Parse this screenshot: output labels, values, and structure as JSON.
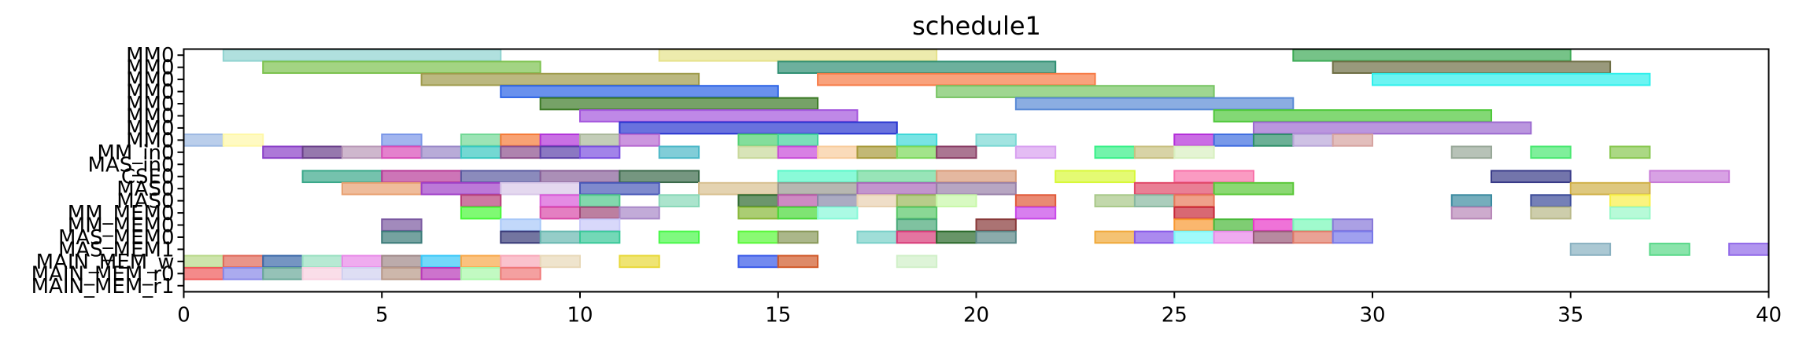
{
  "chart_data": {
    "type": "gantt",
    "title": "schedule1",
    "xlabel": "",
    "ylabel": "",
    "xlim": [
      0,
      40
    ],
    "x_ticks": [
      0,
      5,
      10,
      15,
      20,
      25,
      30,
      35,
      40
    ],
    "grid": false,
    "rows": [
      "MM0",
      "MM0",
      "MM0",
      "MM0",
      "MM0",
      "MM0",
      "MM0",
      "MM0",
      "MM_in0",
      "MAS_in0",
      "CSE0",
      "MAS0",
      "MAS0",
      "MM_MEM0",
      "MM_MEM0",
      "MAS_MEM0",
      "MAS_MEM1",
      "MAIN_MEM_w",
      "MAIN_MEM_r0",
      "MAIN_MEM_r1"
    ],
    "tasks": [
      {
        "row": 0,
        "start": 1,
        "end": 8,
        "color": "#8fd3d0"
      },
      {
        "row": 0,
        "start": 12,
        "end": 19,
        "color": "#e6e28a"
      },
      {
        "row": 0,
        "start": 28,
        "end": 35,
        "color": "#3caa55"
      },
      {
        "row": 1,
        "start": 2,
        "end": 9,
        "color": "#7cc24e"
      },
      {
        "row": 1,
        "start": 15,
        "end": 22,
        "color": "#2f8f73"
      },
      {
        "row": 1,
        "start": 29,
        "end": 36,
        "color": "#6e6e44"
      },
      {
        "row": 2,
        "start": 6,
        "end": 13,
        "color": "#9e9a4a"
      },
      {
        "row": 2,
        "start": 16,
        "end": 23,
        "color": "#f77a45"
      },
      {
        "row": 2,
        "start": 30,
        "end": 37,
        "color": "#2ef0ec"
      },
      {
        "row": 3,
        "start": 8,
        "end": 15,
        "color": "#2a62e6"
      },
      {
        "row": 3,
        "start": 19,
        "end": 26,
        "color": "#76c462"
      },
      {
        "row": 4,
        "start": 9,
        "end": 16,
        "color": "#3c7a26"
      },
      {
        "row": 4,
        "start": 21,
        "end": 28,
        "color": "#5a8ad6"
      },
      {
        "row": 5,
        "start": 10,
        "end": 17,
        "color": "#a455dd"
      },
      {
        "row": 5,
        "start": 26,
        "end": 33,
        "color": "#4ec83a"
      },
      {
        "row": 6,
        "start": 11,
        "end": 18,
        "color": "#2a36d0"
      },
      {
        "row": 6,
        "start": 27,
        "end": 34,
        "color": "#9c6ad0"
      },
      {
        "row": 7,
        "start": 0,
        "end": 1,
        "color": "#9db9e3"
      },
      {
        "row": 7,
        "start": 1,
        "end": 2,
        "color": "#fff8a8"
      },
      {
        "row": 7,
        "start": 5,
        "end": 6,
        "color": "#7a96e8"
      },
      {
        "row": 7,
        "start": 7,
        "end": 8,
        "color": "#72d895"
      },
      {
        "row": 7,
        "start": 8,
        "end": 9,
        "color": "#f57a38"
      },
      {
        "row": 7,
        "start": 9,
        "end": 10,
        "color": "#b233d9"
      },
      {
        "row": 7,
        "start": 10,
        "end": 11,
        "color": "#a9b89a"
      },
      {
        "row": 7,
        "start": 11,
        "end": 12,
        "color": "#b66ad1"
      },
      {
        "row": 7,
        "start": 14,
        "end": 15,
        "color": "#4fd070"
      },
      {
        "row": 7,
        "start": 15,
        "end": 16,
        "color": "#42d39b"
      },
      {
        "row": 7,
        "start": 18,
        "end": 19,
        "color": "#3ed8d8"
      },
      {
        "row": 7,
        "start": 20,
        "end": 21,
        "color": "#7ad8d4"
      },
      {
        "row": 7,
        "start": 25,
        "end": 26,
        "color": "#b42ed9"
      },
      {
        "row": 7,
        "start": 26,
        "end": 27,
        "color": "#3f6de0"
      },
      {
        "row": 7,
        "start": 27,
        "end": 28,
        "color": "#2e8f6a"
      },
      {
        "row": 7,
        "start": 28,
        "end": 29,
        "color": "#b9a6d8"
      },
      {
        "row": 7,
        "start": 29,
        "end": 30,
        "color": "#d6a3a0"
      },
      {
        "row": 8,
        "start": 2,
        "end": 3,
        "color": "#8a3fc8"
      },
      {
        "row": 8,
        "start": 3,
        "end": 4,
        "color": "#6a3f8a"
      },
      {
        "row": 8,
        "start": 4,
        "end": 5,
        "color": "#b998b8"
      },
      {
        "row": 8,
        "start": 5,
        "end": 6,
        "color": "#d84cb8"
      },
      {
        "row": 8,
        "start": 6,
        "end": 7,
        "color": "#9a88c8"
      },
      {
        "row": 8,
        "start": 7,
        "end": 8,
        "color": "#38c8c0"
      },
      {
        "row": 8,
        "start": 8,
        "end": 9,
        "color": "#8c4f8c"
      },
      {
        "row": 8,
        "start": 9,
        "end": 10,
        "color": "#5a3fa8"
      },
      {
        "row": 8,
        "start": 10,
        "end": 11,
        "color": "#7a4fe0"
      },
      {
        "row": 8,
        "start": 12,
        "end": 13,
        "color": "#4cb8c8"
      },
      {
        "row": 8,
        "start": 14,
        "end": 15,
        "color": "#c8d89a"
      },
      {
        "row": 8,
        "start": 15,
        "end": 16,
        "color": "#c84ad8"
      },
      {
        "row": 8,
        "start": 16,
        "end": 17,
        "color": "#f8cc9c"
      },
      {
        "row": 8,
        "start": 17,
        "end": 18,
        "color": "#a89a3a"
      },
      {
        "row": 8,
        "start": 18,
        "end": 19,
        "color": "#7ad858"
      },
      {
        "row": 8,
        "start": 19,
        "end": 20,
        "color": "#883c64"
      },
      {
        "row": 8,
        "start": 21,
        "end": 22,
        "color": "#d8a0f0"
      },
      {
        "row": 8,
        "start": 23,
        "end": 24,
        "color": "#38f088"
      },
      {
        "row": 8,
        "start": 24,
        "end": 25,
        "color": "#c8c080"
      },
      {
        "row": 8,
        "start": 25,
        "end": 26,
        "color": "#d8f0c0"
      },
      {
        "row": 8,
        "start": 32,
        "end": 33,
        "color": "#98a898"
      },
      {
        "row": 8,
        "start": 34,
        "end": 35,
        "color": "#48e870"
      },
      {
        "row": 8,
        "start": 36,
        "end": 37,
        "color": "#88c850"
      },
      {
        "row": 10,
        "start": 3,
        "end": 5,
        "color": "#3aa88a"
      },
      {
        "row": 10,
        "start": 5,
        "end": 7,
        "color": "#b83a98"
      },
      {
        "row": 10,
        "start": 7,
        "end": 9,
        "color": "#5a5aa0"
      },
      {
        "row": 10,
        "start": 9,
        "end": 11,
        "color": "#886098"
      },
      {
        "row": 10,
        "start": 11,
        "end": 13,
        "color": "#3a6a4a"
      },
      {
        "row": 10,
        "start": 15,
        "end": 17,
        "color": "#58f8c8"
      },
      {
        "row": 10,
        "start": 17,
        "end": 19,
        "color": "#6cd89a"
      },
      {
        "row": 10,
        "start": 19,
        "end": 21,
        "color": "#d89a78"
      },
      {
        "row": 10,
        "start": 22,
        "end": 24,
        "color": "#d8f838"
      },
      {
        "row": 10,
        "start": 25,
        "end": 27,
        "color": "#f870a8"
      },
      {
        "row": 10,
        "start": 33,
        "end": 35,
        "color": "#383a88"
      },
      {
        "row": 10,
        "start": 37,
        "end": 39,
        "color": "#c87ad8"
      },
      {
        "row": 11,
        "start": 4,
        "end": 6,
        "color": "#e8a070"
      },
      {
        "row": 11,
        "start": 6,
        "end": 8,
        "color": "#a040c8"
      },
      {
        "row": 11,
        "start": 8,
        "end": 10,
        "color": "#d8c8e8"
      },
      {
        "row": 11,
        "start": 10,
        "end": 12,
        "color": "#4858b8"
      },
      {
        "row": 11,
        "start": 13,
        "end": 15,
        "color": "#d8c090"
      },
      {
        "row": 11,
        "start": 15,
        "end": 17,
        "color": "#989890"
      },
      {
        "row": 11,
        "start": 17,
        "end": 19,
        "color": "#a868b8"
      },
      {
        "row": 11,
        "start": 19,
        "end": 21,
        "color": "#9880a8"
      },
      {
        "row": 11,
        "start": 24,
        "end": 26,
        "color": "#e04868"
      },
      {
        "row": 11,
        "start": 26,
        "end": 28,
        "color": "#5ac838"
      },
      {
        "row": 11,
        "start": 35,
        "end": 37,
        "color": "#d0b048"
      },
      {
        "row": 12,
        "start": 7,
        "end": 8,
        "color": "#b8407a"
      },
      {
        "row": 12,
        "start": 9,
        "end": 10,
        "color": "#d85ad8"
      },
      {
        "row": 12,
        "start": 10,
        "end": 11,
        "color": "#4fc88a"
      },
      {
        "row": 12,
        "start": 12,
        "end": 13,
        "color": "#88d8b8"
      },
      {
        "row": 12,
        "start": 14,
        "end": 15,
        "color": "#2e6a2e"
      },
      {
        "row": 12,
        "start": 15,
        "end": 16,
        "color": "#b858a8"
      },
      {
        "row": 12,
        "start": 16,
        "end": 17,
        "color": "#8888a8"
      },
      {
        "row": 12,
        "start": 17,
        "end": 18,
        "color": "#e8d0b0"
      },
      {
        "row": 12,
        "start": 18,
        "end": 19,
        "color": "#98b858"
      },
      {
        "row": 12,
        "start": 19,
        "end": 20,
        "color": "#c8f8a8"
      },
      {
        "row": 12,
        "start": 21,
        "end": 22,
        "color": "#e05838"
      },
      {
        "row": 12,
        "start": 23,
        "end": 24,
        "color": "#a8c888"
      },
      {
        "row": 12,
        "start": 24,
        "end": 25,
        "color": "#88b8a0"
      },
      {
        "row": 12,
        "start": 25,
        "end": 26,
        "color": "#e87858"
      },
      {
        "row": 12,
        "start": 32,
        "end": 33,
        "color": "#3a8aa0"
      },
      {
        "row": 12,
        "start": 34,
        "end": 35,
        "color": "#3a4a98"
      },
      {
        "row": 12,
        "start": 36,
        "end": 37,
        "color": "#f8f048"
      },
      {
        "row": 13,
        "start": 7,
        "end": 8,
        "color": "#48f838"
      },
      {
        "row": 13,
        "start": 9,
        "end": 10,
        "color": "#d848a8"
      },
      {
        "row": 13,
        "start": 10,
        "end": 11,
        "color": "#a04878"
      },
      {
        "row": 13,
        "start": 11,
        "end": 12,
        "color": "#a888c8"
      },
      {
        "row": 13,
        "start": 14,
        "end": 15,
        "color": "#88b838"
      },
      {
        "row": 13,
        "start": 15,
        "end": 16,
        "color": "#48d838"
      },
      {
        "row": 13,
        "start": 16,
        "end": 17,
        "color": "#88f8d8"
      },
      {
        "row": 13,
        "start": 18,
        "end": 19,
        "color": "#58c868"
      },
      {
        "row": 13,
        "start": 21,
        "end": 22,
        "color": "#c848e8"
      },
      {
        "row": 13,
        "start": 25,
        "end": 26,
        "color": "#c82838"
      },
      {
        "row": 13,
        "start": 32,
        "end": 33,
        "color": "#b888b8"
      },
      {
        "row": 13,
        "start": 34,
        "end": 35,
        "color": "#b8b888"
      },
      {
        "row": 13,
        "start": 36,
        "end": 37,
        "color": "#98f8c8"
      },
      {
        "row": 14,
        "start": 5,
        "end": 6,
        "color": "#7a58a0"
      },
      {
        "row": 14,
        "start": 8,
        "end": 9,
        "color": "#a8c8f8"
      },
      {
        "row": 14,
        "start": 10,
        "end": 11,
        "color": "#c8c8f8"
      },
      {
        "row": 14,
        "start": 18,
        "end": 19,
        "color": "#48a878"
      },
      {
        "row": 14,
        "start": 20,
        "end": 21,
        "color": "#883838"
      },
      {
        "row": 14,
        "start": 25,
        "end": 26,
        "color": "#f89830"
      },
      {
        "row": 14,
        "start": 26,
        "end": 27,
        "color": "#48b838"
      },
      {
        "row": 14,
        "start": 27,
        "end": 28,
        "color": "#e838c8"
      },
      {
        "row": 14,
        "start": 28,
        "end": 29,
        "color": "#78f8b8"
      },
      {
        "row": 14,
        "start": 29,
        "end": 30,
        "color": "#8878d8"
      },
      {
        "row": 15,
        "start": 5,
        "end": 6,
        "color": "#3a7a78"
      },
      {
        "row": 15,
        "start": 8,
        "end": 9,
        "color": "#383a78"
      },
      {
        "row": 15,
        "start": 9,
        "end": 10,
        "color": "#68b8b0"
      },
      {
        "row": 15,
        "start": 10,
        "end": 11,
        "color": "#38c898"
      },
      {
        "row": 15,
        "start": 12,
        "end": 13,
        "color": "#48f848"
      },
      {
        "row": 15,
        "start": 14,
        "end": 15,
        "color": "#58f838"
      },
      {
        "row": 15,
        "start": 15,
        "end": 16,
        "color": "#889858"
      },
      {
        "row": 15,
        "start": 17,
        "end": 18,
        "color": "#78d0c8"
      },
      {
        "row": 15,
        "start": 18,
        "end": 19,
        "color": "#d83a78"
      },
      {
        "row": 15,
        "start": 19,
        "end": 20,
        "color": "#286828"
      },
      {
        "row": 15,
        "start": 20,
        "end": 21,
        "color": "#5a8888"
      },
      {
        "row": 15,
        "start": 23,
        "end": 24,
        "color": "#f0a838"
      },
      {
        "row": 15,
        "start": 24,
        "end": 25,
        "color": "#8858e8"
      },
      {
        "row": 15,
        "start": 25,
        "end": 26,
        "color": "#78f8f8"
      },
      {
        "row": 15,
        "start": 26,
        "end": 27,
        "color": "#e888e8"
      },
      {
        "row": 15,
        "start": 27,
        "end": 28,
        "color": "#985878"
      },
      {
        "row": 15,
        "start": 28,
        "end": 29,
        "color": "#e07a68"
      },
      {
        "row": 15,
        "start": 29,
        "end": 30,
        "color": "#7878e8"
      },
      {
        "row": 16,
        "start": 35,
        "end": 36,
        "color": "#88b0c0"
      },
      {
        "row": 16,
        "start": 37,
        "end": 38,
        "color": "#58d888"
      },
      {
        "row": 16,
        "start": 39,
        "end": 40,
        "color": "#9068e8"
      },
      {
        "row": 17,
        "start": 0,
        "end": 1,
        "color": "#b8d888"
      },
      {
        "row": 17,
        "start": 1,
        "end": 2,
        "color": "#e06858"
      },
      {
        "row": 17,
        "start": 2,
        "end": 3,
        "color": "#3a68a8"
      },
      {
        "row": 17,
        "start": 3,
        "end": 4,
        "color": "#98e0c0"
      },
      {
        "row": 17,
        "start": 4,
        "end": 5,
        "color": "#e888e8"
      },
      {
        "row": 17,
        "start": 5,
        "end": 6,
        "color": "#a08888"
      },
      {
        "row": 17,
        "start": 6,
        "end": 7,
        "color": "#38c8f8"
      },
      {
        "row": 17,
        "start": 7,
        "end": 8,
        "color": "#f8a848"
      },
      {
        "row": 17,
        "start": 8,
        "end": 9,
        "color": "#f8a8b8"
      },
      {
        "row": 17,
        "start": 9,
        "end": 10,
        "color": "#e8d8b8"
      },
      {
        "row": 17,
        "start": 11,
        "end": 12,
        "color": "#e8d838"
      },
      {
        "row": 17,
        "start": 14,
        "end": 15,
        "color": "#3858e8"
      },
      {
        "row": 17,
        "start": 15,
        "end": 16,
        "color": "#d05828"
      },
      {
        "row": 17,
        "start": 18,
        "end": 19,
        "color": "#d0f0c8"
      },
      {
        "row": 18,
        "start": 0,
        "end": 1,
        "color": "#f05858"
      },
      {
        "row": 18,
        "start": 1,
        "end": 2,
        "color": "#8888e8"
      },
      {
        "row": 18,
        "start": 2,
        "end": 3,
        "color": "#68a898"
      },
      {
        "row": 18,
        "start": 3,
        "end": 4,
        "color": "#f8d0e0"
      },
      {
        "row": 18,
        "start": 4,
        "end": 5,
        "color": "#d0d0f0"
      },
      {
        "row": 18,
        "start": 5,
        "end": 6,
        "color": "#b89888"
      },
      {
        "row": 18,
        "start": 6,
        "end": 7,
        "color": "#b838b8"
      },
      {
        "row": 18,
        "start": 7,
        "end": 8,
        "color": "#a8f8a8"
      },
      {
        "row": 18,
        "start": 8,
        "end": 9,
        "color": "#f07878"
      }
    ]
  }
}
